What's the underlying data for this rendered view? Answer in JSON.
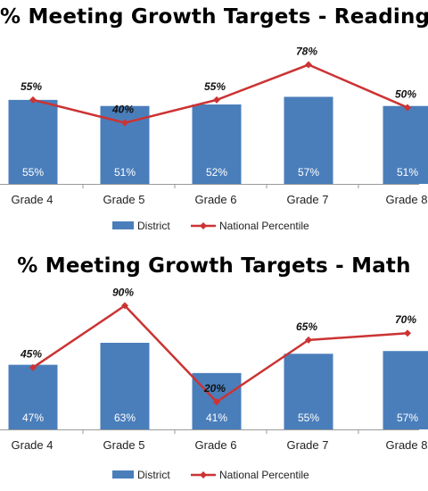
{
  "chart_data": [
    {
      "type": "bar",
      "title": "% Meeting Growth Targets - Reading",
      "categories": [
        "Grade 4",
        "Grade 5",
        "Grade 6",
        "Grade 7",
        "Grade 8"
      ],
      "series": [
        {
          "name": "District",
          "type": "bar",
          "values": [
            55,
            51,
            52,
            57,
            51
          ],
          "labels": [
            "55%",
            "51%",
            "52%",
            "57%",
            "51%"
          ]
        },
        {
          "name": "National Percentile",
          "type": "line",
          "values": [
            55,
            40,
            55,
            78,
            50
          ],
          "labels": [
            "55%",
            "40%",
            "55%",
            "78%",
            "50%"
          ]
        }
      ],
      "ylim": [
        0,
        90
      ],
      "legend": "bottom",
      "grid": false,
      "colors": {
        "bar": "#4a7ebb",
        "line": "#cc3333"
      }
    },
    {
      "type": "bar",
      "title": "% Meeting Growth Targets - Math",
      "categories": [
        "Grade 4",
        "Grade 5",
        "Grade 6",
        "Grade 7",
        "Grade 8"
      ],
      "series": [
        {
          "name": "District",
          "type": "bar",
          "values": [
            47,
            63,
            41,
            55,
            57
          ],
          "labels": [
            "47%",
            "63%",
            "41%",
            "55%",
            "57%"
          ]
        },
        {
          "name": "National Percentile",
          "type": "line",
          "values": [
            45,
            90,
            20,
            65,
            70
          ],
          "labels": [
            "45%",
            "90%",
            "20%",
            "65%",
            "70%"
          ]
        }
      ],
      "ylim": [
        0,
        100
      ],
      "legend": "bottom",
      "grid": false,
      "colors": {
        "bar": "#4a7ebb",
        "line": "#cc3333"
      }
    }
  ]
}
